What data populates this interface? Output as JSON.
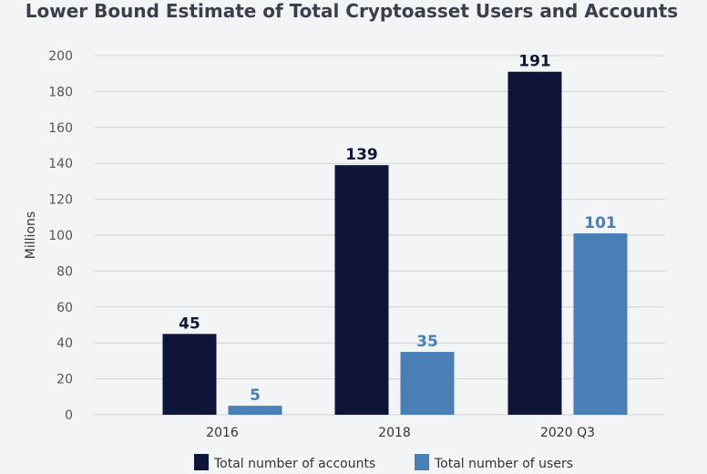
{
  "chart_data": {
    "type": "bar",
    "title": "Lower Bound Estimate of Total Cryptoasset Users and Accounts",
    "ylabel": "Millions",
    "xlabel": "",
    "categories": [
      "2016",
      "2018",
      "2020 Q3"
    ],
    "series": [
      {
        "name": "Total number of accounts",
        "color": "#0e1538",
        "label_color": "#0e1538",
        "values": [
          45,
          139,
          191
        ]
      },
      {
        "name": "Total number of users",
        "color": "#4a7fb6",
        "label_color": "#4a7fb6",
        "values": [
          5,
          35,
          101
        ]
      }
    ],
    "yticks": [
      "0",
      "20",
      "40",
      "60",
      "80",
      "100",
      "120",
      "140",
      "160",
      "180",
      "200"
    ],
    "ylim": [
      0,
      200
    ],
    "grid": true,
    "legend_position": "bottom-center"
  }
}
